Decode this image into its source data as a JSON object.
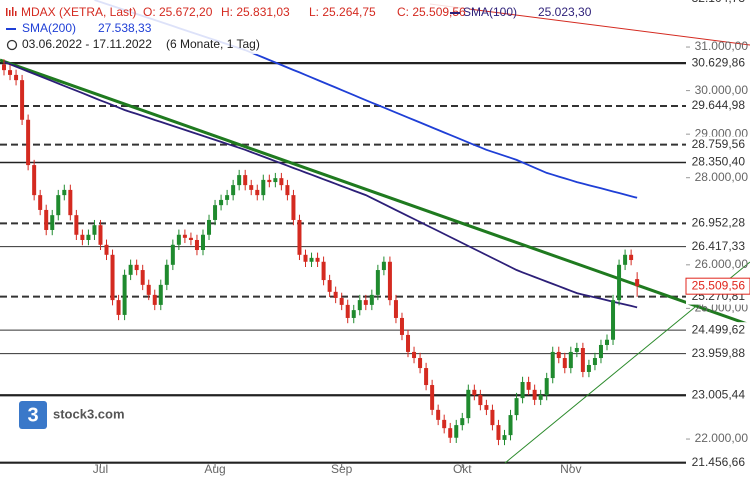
{
  "chart_data": {
    "type": "candlestick",
    "title": "MDAX (XETRA, Last)",
    "ohlc_labels": [
      "O: 25.672,20",
      "H: 25.831,03",
      "L: 25.264,75",
      "C: 25.509,56"
    ],
    "period": "03.06.2022 - 17.11.2022",
    "period_note": "(6 Monate, 1 Tag)",
    "categories": [
      null,
      null,
      null,
      null,
      null,
      null,
      null,
      null,
      null,
      null,
      null,
      null,
      null,
      null,
      null,
      null,
      "Jul",
      null,
      null,
      null,
      null,
      null,
      null,
      null,
      null,
      null,
      null,
      null,
      null,
      null,
      null,
      null,
      null,
      null,
      null,
      "Aug",
      null,
      null,
      null,
      null,
      null,
      null,
      null,
      null,
      null,
      null,
      null,
      null,
      null,
      null,
      null,
      null,
      null,
      null,
      null,
      null,
      "Sep",
      null,
      null,
      null,
      null,
      null,
      null,
      null,
      null,
      null,
      null,
      null,
      null,
      null,
      null,
      null,
      null,
      null,
      null,
      null,
      "Okt",
      null,
      null,
      null,
      null,
      null,
      null,
      null,
      null,
      null,
      null,
      null,
      null,
      null,
      null,
      null,
      null,
      null,
      "Nov",
      null,
      null,
      null,
      null,
      null,
      null,
      null,
      null,
      null,
      null,
      null
    ],
    "open": [
      30600,
      30470,
      30360,
      30240,
      29330,
      28290,
      27600,
      27260,
      26800,
      27140,
      27600,
      27720,
      27140,
      26690,
      26570,
      26690,
      26910,
      26460,
      26230,
      25190,
      24850,
      25770,
      26000,
      25880,
      25540,
      25310,
      25080,
      25540,
      26000,
      26460,
      26690,
      26620,
      26570,
      26340,
      26690,
      27030,
      27370,
      27490,
      27600,
      27830,
      28060,
      27830,
      27720,
      27600,
      27950,
      27900,
      27990,
      27830,
      27600,
      27030,
      26230,
      26070,
      26160,
      26070,
      25650,
      25380,
      25240,
      25080,
      24780,
      24960,
      25190,
      25080,
      25310,
      25880,
      26070,
      25190,
      24780,
      24390,
      24000,
      23860,
      23630,
      23240,
      22670,
      22440,
      22250,
      22030,
      22320,
      22480,
      23130,
      23010,
      22780,
      22670,
      22320,
      21980,
      22090,
      22550,
      22940,
      23310,
      23130,
      22900,
      23010,
      23400,
      24000,
      23860,
      23630,
      24000,
      24090,
      23540,
      23700,
      23860,
      24160,
      24280,
      25190,
      26000,
      26230,
      25672.2
    ],
    "high": [
      30720,
      30590,
      30480,
      30360,
      29450,
      28410,
      27720,
      27380,
      27260,
      27720,
      27840,
      27840,
      27260,
      26810,
      26810,
      27030,
      27030,
      26580,
      26350,
      25310,
      25890,
      26120,
      26120,
      26000,
      25660,
      25430,
      25660,
      26120,
      26580,
      26810,
      26810,
      26740,
      26690,
      26810,
      27150,
      27490,
      27610,
      27720,
      27950,
      28180,
      28180,
      27950,
      27840,
      28070,
      28070,
      28110,
      28110,
      27950,
      27720,
      27150,
      26350,
      26280,
      26280,
      26190,
      25770,
      25500,
      25360,
      25200,
      25080,
      25310,
      25310,
      25430,
      26000,
      26190,
      26190,
      25310,
      24900,
      24510,
      24120,
      23980,
      23750,
      23360,
      22790,
      22560,
      22370,
      22440,
      22600,
      23250,
      23250,
      23130,
      22900,
      22790,
      22440,
      22210,
      22670,
      23060,
      23430,
      23430,
      23250,
      23130,
      23520,
      24120,
      24120,
      23980,
      24120,
      24210,
      24210,
      23820,
      23980,
      24280,
      24400,
      25310,
      26120,
      26350,
      26350,
      25831.03
    ],
    "low": [
      30350,
      30240,
      30120,
      29210,
      28170,
      27480,
      27140,
      26680,
      26680,
      27020,
      27480,
      27020,
      26570,
      26450,
      26450,
      26570,
      26340,
      26110,
      25070,
      24730,
      24730,
      25650,
      25760,
      25420,
      25190,
      24960,
      24960,
      25420,
      25880,
      26340,
      26500,
      26450,
      26220,
      26220,
      26570,
      26910,
      27250,
      27370,
      27480,
      27710,
      27710,
      27600,
      27480,
      27480,
      27780,
      27780,
      27710,
      27480,
      26910,
      26110,
      25950,
      25950,
      25950,
      25530,
      25260,
      25120,
      24960,
      24660,
      24660,
      24840,
      24960,
      24960,
      25190,
      25760,
      25070,
      24660,
      24270,
      23880,
      23740,
      23510,
      23120,
      22550,
      22320,
      22130,
      21910,
      21910,
      22200,
      22360,
      22890,
      22660,
      22550,
      22200,
      21860,
      21860,
      21970,
      22430,
      22820,
      23010,
      22780,
      22780,
      22890,
      23280,
      23740,
      23510,
      23510,
      23880,
      23420,
      23420,
      23580,
      23740,
      24040,
      24160,
      25070,
      25880,
      25990,
      25264.75
    ],
    "close": [
      30470,
      30360,
      30240,
      29330,
      28290,
      27600,
      27260,
      26800,
      27140,
      27600,
      27720,
      27140,
      26690,
      26570,
      26690,
      26910,
      26460,
      26230,
      25190,
      24850,
      25770,
      26000,
      25880,
      25540,
      25310,
      25080,
      25540,
      26000,
      26460,
      26690,
      26620,
      26570,
      26340,
      26690,
      27030,
      27370,
      27490,
      27600,
      27830,
      28060,
      27830,
      27720,
      27600,
      27950,
      27900,
      27990,
      27830,
      27600,
      27030,
      26230,
      26070,
      26160,
      26070,
      25650,
      25380,
      25240,
      25080,
      24780,
      24960,
      25190,
      25080,
      25310,
      25880,
      26070,
      25190,
      24780,
      24390,
      24000,
      23860,
      23630,
      23240,
      22670,
      22440,
      22250,
      22030,
      22320,
      22480,
      23130,
      23010,
      22780,
      22670,
      22320,
      21980,
      22090,
      22550,
      22940,
      23310,
      23130,
      22900,
      23010,
      23400,
      24000,
      23860,
      23630,
      24000,
      24090,
      23540,
      23700,
      23860,
      24160,
      24280,
      25190,
      26000,
      26230,
      26110,
      25509.56
    ],
    "up_color": "#1f8a2e",
    "down_color": "#d42a20",
    "series": [
      {
        "name": "SMA(100)",
        "last_label": "25.023,30",
        "color": "#2c1f78",
        "values": [
          30660,
          30605,
          30550,
          30494,
          30439,
          30384,
          30329,
          30273,
          30218,
          30163,
          30108,
          30052,
          29997,
          29942,
          29887,
          29831,
          29776,
          29721,
          29666,
          29610,
          29555,
          29509,
          29464,
          29418,
          29372,
          29326,
          29281,
          29235,
          29189,
          29143,
          29098,
          29052,
          29006,
          28960,
          28915,
          28869,
          28823,
          28778,
          28732,
          28686,
          28640,
          28588,
          28536,
          28484,
          28432,
          28380,
          28328,
          28276,
          28224,
          28172,
          28120,
          28068,
          28016,
          27964,
          27912,
          27860,
          27808,
          27756,
          27704,
          27652,
          27600,
          27531,
          27463,
          27394,
          27325,
          27257,
          27188,
          27119,
          27051,
          26982,
          26913,
          26845,
          26776,
          26707,
          26639,
          26570,
          26501,
          26432,
          26363,
          26294,
          26225,
          26156,
          26087,
          26018,
          25949,
          25880,
          25827,
          25774,
          25721,
          25668,
          25615,
          25562,
          25509,
          25456,
          25403,
          25350,
          25317,
          25285,
          25252,
          25219,
          25187,
          25154,
          25121,
          25088,
          25056,
          25023.3
        ]
      },
      {
        "name": "SMA(200)",
        "last_label": "27.538,33",
        "color": "#1f3fd6",
        "values": [
          null,
          null,
          null,
          null,
          null,
          null,
          null,
          null,
          null,
          null,
          null,
          null,
          null,
          null,
          null,
          32080,
          32034,
          31988,
          31942,
          31896,
          31850,
          31804,
          31758,
          31712,
          31666,
          31620,
          31574,
          31528,
          31482,
          31436,
          31390,
          31344,
          31298,
          31252,
          31206,
          31160,
          31114,
          31068,
          31022,
          30976,
          30930,
          30873,
          30816,
          30759,
          30702,
          30645,
          30588,
          30531,
          30474,
          30417,
          30360,
          30302,
          30244,
          30186,
          30128,
          30070,
          30012,
          29954,
          29896,
          29838,
          29780,
          29723,
          29666,
          29609,
          29552,
          29495,
          29438,
          29381,
          29324,
          29267,
          29210,
          29153,
          29096,
          29039,
          28982,
          28925,
          28868,
          28811,
          28754,
          28697,
          28640,
          28594,
          28548,
          28502,
          28456,
          28410,
          28350,
          28290,
          28230,
          28170,
          28110,
          28068,
          28026,
          27984,
          27942,
          27900,
          27864,
          27828,
          27792,
          27756,
          27720,
          27684,
          27648,
          27612,
          27576,
          27538.33
        ]
      }
    ],
    "ylim": [
      21450,
      32080
    ],
    "yticks": [
      {
        "value": 22000,
        "label": "22.000,00"
      },
      {
        "value": 23000,
        "label": "23.000,00"
      },
      {
        "value": 24000,
        "label": "24.000,00"
      },
      {
        "value": 25000,
        "label": "25.000,00"
      },
      {
        "value": 26000,
        "label": "26.000,00"
      },
      {
        "value": 27000,
        "label": "27.000,00"
      },
      {
        "value": 28000,
        "label": "28.000,00"
      },
      {
        "value": 29000,
        "label": "29.000,00"
      },
      {
        "value": 30000,
        "label": "30.000,00"
      },
      {
        "value": 31000,
        "label": "31.000,00"
      }
    ],
    "levels": [
      {
        "value": 32104.73,
        "label": "32.104,73",
        "style": "none"
      },
      {
        "value": 30629.86,
        "label": "30.629,86",
        "style": "thick"
      },
      {
        "value": 29644.98,
        "label": "29.644,98",
        "style": "dashed"
      },
      {
        "value": 28759.56,
        "label": "28.759,56",
        "style": "dashed"
      },
      {
        "value": 28350.4,
        "label": "28.350,40",
        "style": "solid"
      },
      {
        "value": 26952.28,
        "label": "26.952,28",
        "style": "dashed"
      },
      {
        "value": 26417.33,
        "label": "26.417,33",
        "style": "thin"
      },
      {
        "value": 25270.81,
        "label": "25.270,81",
        "style": "dashed"
      },
      {
        "value": 24499.62,
        "label": "24.499,62",
        "style": "thin"
      },
      {
        "value": 23959.88,
        "label": "23.959,88",
        "style": "thin"
      },
      {
        "value": 23005.44,
        "label": "23.005,44",
        "style": "thick"
      },
      {
        "value": 21456.66,
        "label": "21.456,66",
        "style": "thick"
      }
    ],
    "last_price": {
      "value": 25509.56,
      "label": "25.509,56",
      "color": "#e0261c"
    }
  },
  "logo": "stock3.com"
}
